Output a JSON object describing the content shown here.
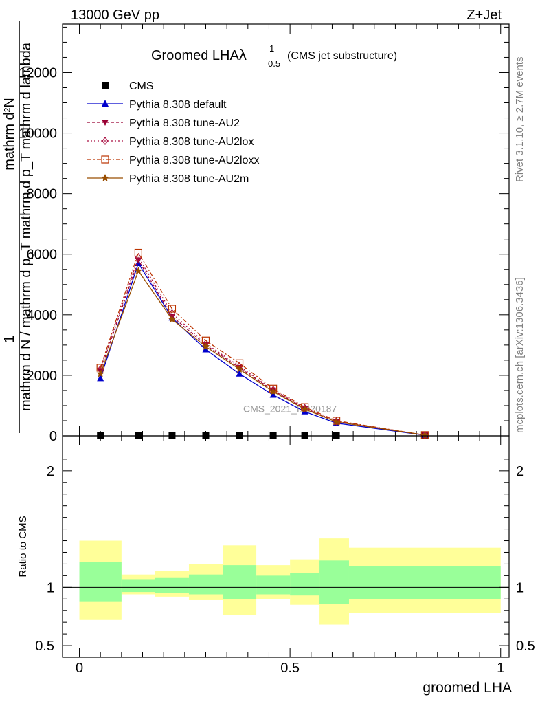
{
  "header": {
    "left": "13000 GeV pp",
    "right": "Z+Jet"
  },
  "side": {
    "rivet": "Rivet 3.1.10, ≥ 2.7M events",
    "mcplots": "mcplots.cern.ch [arXiv:1306.3436]"
  },
  "watermark": "CMS_2021_I1920187",
  "chart_data": [
    {
      "type": "line",
      "title": "Groomed LHA",
      "title_symbol": "λ",
      "title_superscript": "1",
      "title_subscript": "0.5",
      "subtitle": "(CMS jet substructure)",
      "ylabel_numerator_1": "1",
      "ylabel_numerator_2": "mathrm d²N",
      "ylabel_denominator": "mathrm d N / mathrm d p_T mathrm d p_T mathrm d lambda",
      "xlim": [
        -0.04,
        1.02
      ],
      "ylim": [
        0,
        13600
      ],
      "yticks": [
        0,
        2000,
        4000,
        6000,
        8000,
        10000,
        12000
      ],
      "ytick_labels": [
        "0",
        "2000",
        "4000",
        "6000",
        "8000",
        "10000",
        "12000"
      ],
      "x": [
        0.05,
        0.14,
        0.22,
        0.3,
        0.38,
        0.46,
        0.535,
        0.61,
        0.82
      ],
      "series": [
        {
          "name": "CMS",
          "color": "#000000",
          "marker": "square",
          "dash": "none",
          "values": [
            0,
            0,
            0,
            0,
            0,
            0,
            0,
            0,
            0
          ]
        },
        {
          "name": "Pythia 8.308 default",
          "color": "#0000cc",
          "marker": "triangle-up",
          "dash": "solid",
          "values": [
            1900,
            5700,
            3900,
            2850,
            2050,
            1350,
            800,
            420,
            20
          ]
        },
        {
          "name": "Pythia 8.308 tune-AU2",
          "color": "#990033",
          "marker": "triangle-down",
          "dash": "4,3",
          "values": [
            2150,
            5800,
            3950,
            3000,
            2250,
            1500,
            900,
            470,
            25
          ]
        },
        {
          "name": "Pythia 8.308 tune-AU2lox",
          "color": "#aa1144",
          "marker": "diamond-open",
          "dash": "2,3",
          "values": [
            2200,
            5900,
            4050,
            3050,
            2300,
            1520,
            920,
            480,
            25
          ]
        },
        {
          "name": "Pythia 8.308 tune-AU2loxx",
          "color": "#bb3300",
          "marker": "square-open",
          "dash": "6,3,2,3",
          "values": [
            2250,
            6050,
            4200,
            3150,
            2400,
            1560,
            950,
            500,
            25
          ]
        },
        {
          "name": "Pythia 8.308 tune-AU2m",
          "color": "#994d00",
          "marker": "star",
          "dash": "solid",
          "values": [
            2050,
            5450,
            3850,
            2950,
            2200,
            1460,
            880,
            460,
            25
          ]
        }
      ],
      "legend": "top-left"
    },
    {
      "type": "area",
      "ylabel": "Ratio to CMS",
      "xlabel": "groomed LHA",
      "xlim": [
        -0.04,
        1.02
      ],
      "ylim": [
        0.4,
        2.3
      ],
      "yticks": [
        0.5,
        1,
        2
      ],
      "ytick_labels": [
        "0.5",
        "1",
        "2"
      ],
      "xticks": [
        0,
        0.5,
        1
      ],
      "xtick_labels": [
        "0",
        "0.5",
        "1"
      ],
      "reference_line": 1,
      "bins": [
        {
          "lo": 0.0,
          "hi": 0.1,
          "green": [
            0.88,
            1.22
          ],
          "yellow": [
            0.72,
            1.4
          ]
        },
        {
          "lo": 0.1,
          "hi": 0.18,
          "green": [
            0.96,
            1.07
          ],
          "yellow": [
            0.94,
            1.11
          ]
        },
        {
          "lo": 0.18,
          "hi": 0.26,
          "green": [
            0.95,
            1.08
          ],
          "yellow": [
            0.92,
            1.14
          ]
        },
        {
          "lo": 0.26,
          "hi": 0.34,
          "green": [
            0.94,
            1.11
          ],
          "yellow": [
            0.89,
            1.2
          ]
        },
        {
          "lo": 0.34,
          "hi": 0.42,
          "green": [
            0.9,
            1.19
          ],
          "yellow": [
            0.76,
            1.36
          ]
        },
        {
          "lo": 0.42,
          "hi": 0.5,
          "green": [
            0.94,
            1.1
          ],
          "yellow": [
            0.9,
            1.19
          ]
        },
        {
          "lo": 0.5,
          "hi": 0.57,
          "green": [
            0.93,
            1.12
          ],
          "yellow": [
            0.85,
            1.24
          ]
        },
        {
          "lo": 0.57,
          "hi": 0.64,
          "green": [
            0.86,
            1.23
          ],
          "yellow": [
            0.68,
            1.42
          ]
        },
        {
          "lo": 0.64,
          "hi": 1.0,
          "green": [
            0.9,
            1.18
          ],
          "yellow": [
            0.78,
            1.34
          ]
        }
      ],
      "colors": {
        "green": "#99ff99",
        "yellow": "#ffff99"
      }
    }
  ]
}
